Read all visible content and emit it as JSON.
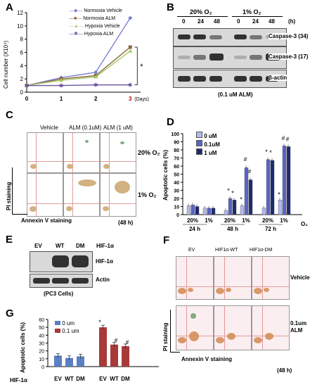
{
  "panels": {
    "A": "A",
    "B": "B",
    "C": "C",
    "D": "D",
    "E": "E",
    "F": "F",
    "G": "G"
  },
  "panelA": {
    "ylabel": "Cell number (X10⁴)",
    "yticks": [
      "0",
      "2",
      "4",
      "6",
      "8",
      "10",
      "12"
    ],
    "xticks": [
      "0",
      "1",
      "2",
      "3"
    ],
    "x_unit": "(Days)",
    "star": "*",
    "legend": [
      "Normoxia Vehicle",
      "Normoxia ALM",
      "Hypoxia Vehicle",
      "Hypoxia ALM"
    ]
  },
  "panelB": {
    "cond1": "20% O₂",
    "cond2": "1% O₂",
    "times": [
      "0",
      "24",
      "48",
      "0",
      "24",
      "48"
    ],
    "unit": "(h)",
    "rows": [
      "Caspase-3 (34)",
      "Caspase-3 (17)",
      "β-actin"
    ],
    "footer": "(0.1 uM ALM)"
  },
  "panelC": {
    "cols": [
      "Vehicle",
      "ALM (0.1uM)",
      "ALM (1 uM)"
    ],
    "rows": [
      "20% O₂",
      "1% O₂"
    ],
    "ylabel": "PI staining",
    "xlabel": "Annexin V staining",
    "time": "(48 h)"
  },
  "panelD": {
    "ylabel": "Apoptotic cells (%)",
    "yticks": [
      "0",
      "10",
      "20",
      "30",
      "40",
      "50",
      "60",
      "70",
      "80",
      "90",
      "100"
    ],
    "legend": [
      "0 uM",
      "0.1uM",
      "1 uM"
    ],
    "o2_labels": [
      "20%",
      "1%",
      "20%",
      "1%",
      "20%",
      "1%"
    ],
    "o2_unit": "O₂",
    "times": [
      "24 h",
      "48 h",
      "72 h"
    ],
    "sig_star": "*",
    "sig_hash": "#"
  },
  "panelE": {
    "lanes": [
      "EV",
      "WT",
      "DM"
    ],
    "header": "HIF-1α",
    "rows": [
      "HIF-1α",
      "Actin"
    ],
    "footer": "(PC3 Cells)"
  },
  "panelF": {
    "cols": [
      "EV",
      "HIF1α-WT",
      "HIF1α-DM"
    ],
    "rows": [
      "Vehicle",
      "0.1um ALM"
    ],
    "ylabel": "PI staining",
    "xlabel": "Annexin V staining",
    "time": "(48 h)"
  },
  "panelG": {
    "ylabel": "Apoptotic cells (%)",
    "yticks": [
      "0",
      "10",
      "20",
      "30",
      "40",
      "50",
      "60"
    ],
    "legend": [
      "0 um",
      "0.1 um"
    ],
    "row_label": "HIF-1α",
    "xlabels": [
      "EV",
      "WT",
      "DM",
      "EV",
      "WT",
      "DM"
    ],
    "sig_star": "*",
    "sig_hash": "#"
  },
  "chart_data": [
    {
      "type": "line",
      "x": [
        0,
        1,
        2,
        3
      ],
      "xlabel": "(Days)",
      "ylabel": "Cell number (X10⁴)",
      "ylim": [
        0,
        12
      ],
      "series": [
        {
          "name": "Normoxia Vehicle",
          "values": [
            1,
            2.2,
            3.0,
            11.2
          ],
          "color": "#7b7fd4"
        },
        {
          "name": "Normoxia ALM",
          "values": [
            1,
            2.0,
            2.5,
            6.8
          ],
          "color": "#8a6a3a"
        },
        {
          "name": "Hypoxia Vehicle",
          "values": [
            1,
            1.8,
            2.3,
            6.2
          ],
          "color": "#a8c86a"
        },
        {
          "name": "Hypoxia ALM",
          "values": [
            1,
            1.0,
            1.1,
            1.1
          ],
          "color": "#6a50a0"
        }
      ]
    },
    {
      "type": "bar",
      "ylabel": "Apoptotic cells (%)",
      "ylim": [
        0,
        100
      ],
      "categories": [
        "24 h 20%",
        "24 h 1%",
        "48 h 20%",
        "48 h 1%",
        "72 h 20%",
        "72 h 1%"
      ],
      "series": [
        {
          "name": "0 uM",
          "values": [
            11,
            8,
            5,
            11,
            8,
            18
          ],
          "color": "#b3b8ec"
        },
        {
          "name": "0.1uM",
          "values": [
            12,
            8,
            20,
            58,
            68,
            85
          ],
          "color": "#5a64c4"
        },
        {
          "name": "1 uM",
          "values": [
            10,
            8,
            18,
            43,
            67,
            84
          ],
          "color": "#1e2a6a"
        }
      ]
    },
    {
      "type": "bar",
      "ylabel": "Apoptotic cells (%)",
      "ylim": [
        0,
        60
      ],
      "categories": [
        "EV",
        "WT",
        "DM",
        "EV",
        "WT",
        "DM"
      ],
      "series": [
        {
          "name": "0 um",
          "values": [
            14,
            11,
            13,
            null,
            null,
            null
          ],
          "color": "#5b7fc4"
        },
        {
          "name": "0.1 um",
          "values": [
            null,
            null,
            null,
            50,
            28,
            26
          ],
          "color": "#a83a3a"
        }
      ]
    }
  ]
}
